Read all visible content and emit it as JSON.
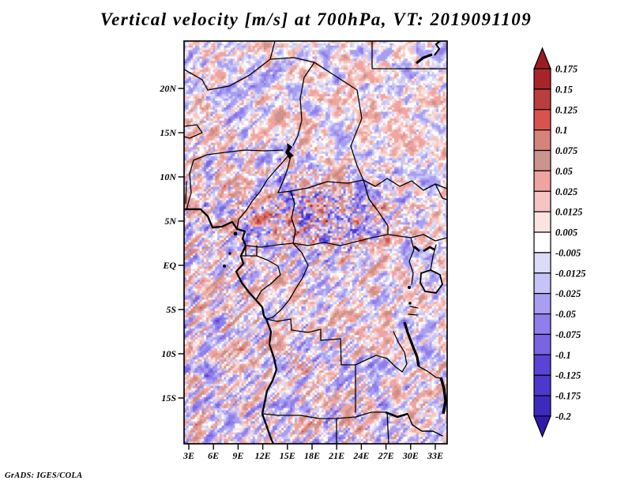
{
  "title": "Vertical velocity [m/s] at 700hPa, VT: 2019091109",
  "credit": "GrADS: IGES/COLA",
  "colors": {
    "background": "#ffffff",
    "map_outline": "#000000",
    "text": "#000000"
  },
  "axes": {
    "lat_tick_labels": [
      "20N",
      "15N",
      "10N",
      "5N",
      "EQ",
      "5S",
      "10S",
      "15S"
    ],
    "lon_tick_labels": [
      "3E",
      "6E",
      "9E",
      "12E",
      "15E",
      "18E",
      "21E",
      "24E",
      "27E",
      "30E",
      "33E"
    ]
  },
  "chart_data": {
    "type": "heatmap",
    "title": "Vertical velocity [m/s] at 700hPa, VT: 2019091109",
    "variable": "Vertical velocity",
    "units": "m/s",
    "pressure_level": "700hPa",
    "valid_time": "2019091109",
    "region": "central Africa",
    "x_tick_labels": [
      "3E",
      "6E",
      "9E",
      "12E",
      "15E",
      "18E",
      "21E",
      "24E",
      "27E",
      "30E",
      "33E"
    ],
    "y_tick_labels": [
      "20N",
      "15N",
      "10N",
      "5N",
      "EQ",
      "5S",
      "10S",
      "15S"
    ],
    "lon_range_deg_east": [
      2.4,
      34.4
    ],
    "lat_range_deg": [
      -20.3,
      25.4
    ],
    "grid": false,
    "legend_position": "right",
    "colorbar": {
      "tick_labels": [
        "0.175",
        "0.15",
        "0.125",
        "0.1",
        "0.075",
        "0.05",
        "0.025",
        "0.0125",
        "0.005",
        "-0.005",
        "-0.0125",
        "-0.025",
        "-0.05",
        "-0.075",
        "-0.1",
        "-0.125",
        "-0.175",
        "-0.2"
      ],
      "levels": [
        0.175,
        0.15,
        0.125,
        0.1,
        0.075,
        0.05,
        0.025,
        0.0125,
        0.005,
        -0.005,
        -0.0125,
        -0.025,
        -0.05,
        -0.075,
        -0.1,
        -0.125,
        -0.175,
        -0.2
      ],
      "colors_top_to_bottom": [
        "#9d1c23",
        "#a8242a",
        "#bb3e3e",
        "#da524e",
        "#d6837b",
        "#cb948c",
        "#f0a49f",
        "#f6c5c1",
        "#fbe3e0",
        "#ffffff",
        "#dbdbfa",
        "#c6c4f7",
        "#a99ef1",
        "#8f7eeb",
        "#7a64e2",
        "#5a43d6",
        "#4c38cc",
        "#3c2abd",
        "#2f1ba8"
      ]
    },
    "field_description": "Noisy small-scale up/downdraft anomalies, mostly between -0.075 and 0.075 m/s; strong convective speckle reaching +/-0.2 m/s near 2N-9N / 10E-27E; elongated NE-SW gravity-wave streaks over the southeast Atlantic and southern Africa"
  }
}
